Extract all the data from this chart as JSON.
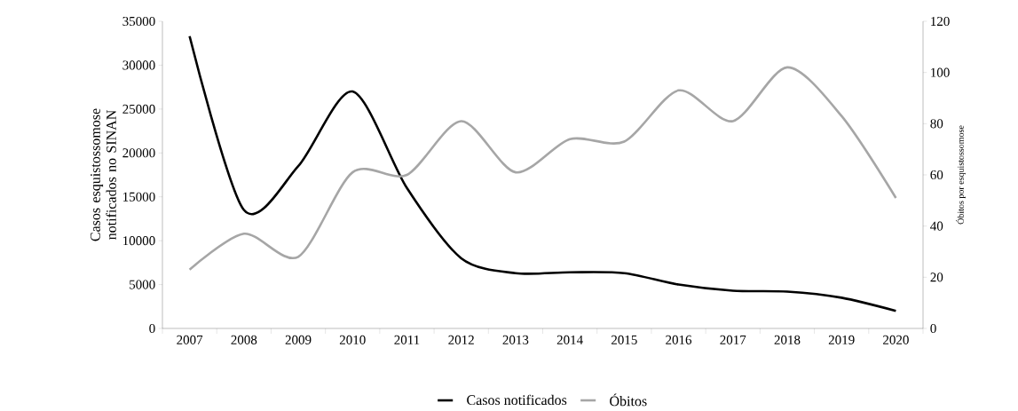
{
  "chart_data": {
    "type": "line",
    "categories": [
      "2007",
      "2008",
      "2009",
      "2010",
      "2011",
      "2012",
      "2013",
      "2014",
      "2015",
      "2016",
      "2017",
      "2018",
      "2019",
      "2020"
    ],
    "ylabel": "Casos esquistossomose notificados no SINAN",
    "y2label": "Óbitos por esquistossomose",
    "ylim": [
      0,
      35000
    ],
    "yticks": [
      0,
      5000,
      10000,
      15000,
      20000,
      25000,
      30000,
      35000
    ],
    "y2lim": [
      0,
      120
    ],
    "y2ticks": [
      0,
      20,
      40,
      60,
      80,
      100,
      120
    ],
    "series": [
      {
        "name": "Casos notificados",
        "color": "#000000",
        "values": [
          33300,
          13500,
          18500,
          27000,
          16000,
          8000,
          6300,
          6400,
          6300,
          5000,
          4300,
          4200,
          3500,
          2000
        ]
      },
      {
        "name": "Óbitos",
        "color": "#a6a6a6",
        "axis": "y2",
        "values": [
          23,
          37,
          28,
          61,
          60,
          81,
          61,
          74,
          73,
          93,
          81,
          102,
          83,
          51
        ]
      }
    ],
    "legend": "bottom",
    "grid": false,
    "marker": "none",
    "line_style": "solid"
  }
}
